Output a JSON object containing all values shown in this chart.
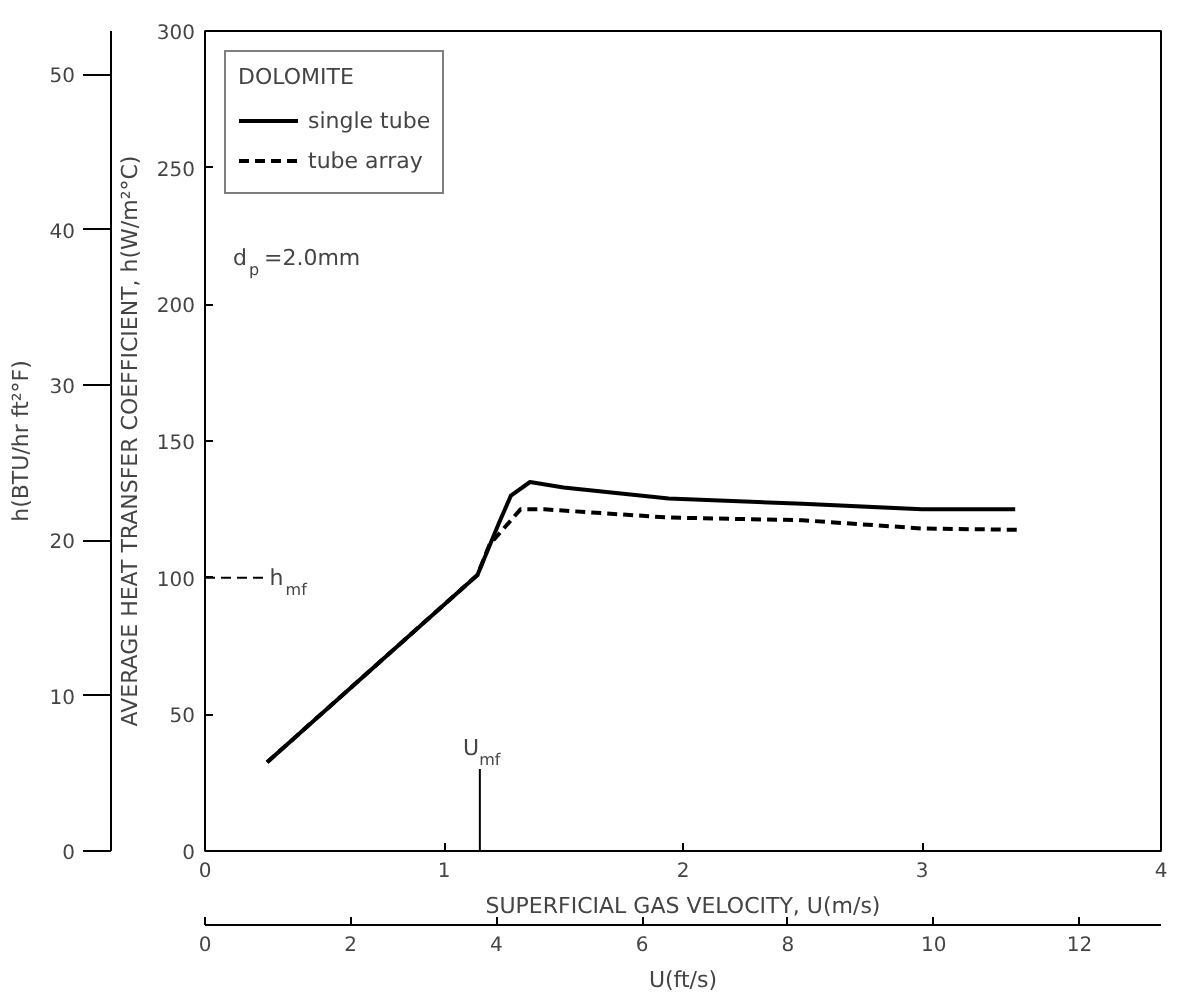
{
  "chart_data": {
    "type": "line",
    "xlabel": "SUPERFICIAL GAS VELOCITY, U(m/s)",
    "ylabel": "AVERAGE HEAT TRANSFER COEFFICIENT, h(W/m²°C)",
    "y2label": "h(BTU/hr ft²°F)",
    "x2label": "U(ft/s)",
    "legend_title": "DOLOMITE",
    "annotations": [
      "d$_{p}$ =2.0mm"
    ],
    "ref_lines": [
      {
        "axis": "y",
        "value": 100,
        "label": "h$_{mf}$",
        "line_style": "dashed"
      },
      {
        "axis": "x",
        "value": 1.15,
        "label": "U$_{mf}$",
        "line_style": "solid"
      }
    ],
    "xlim": [
      0,
      4
    ],
    "xticks": [
      0,
      1,
      2,
      3,
      4
    ],
    "ylim": [
      0,
      300
    ],
    "yticks": [
      0,
      50,
      100,
      150,
      200,
      250,
      300
    ],
    "y2lim": [
      0,
      52.8
    ],
    "y2ticks": [
      0,
      10,
      20,
      30,
      40,
      50
    ],
    "x2lim": [
      0,
      13.12
    ],
    "x2ticks": [
      0,
      2,
      4,
      6,
      8,
      10,
      12
    ],
    "legend": "top left",
    "grid": false,
    "series": [
      {
        "name": "single tube",
        "color": "#000000",
        "line_style": "solid",
        "x": [
          0.26,
          1.14,
          1.23,
          1.28,
          1.36,
          1.5,
          1.94,
          2.5,
          3.0,
          3.39
        ],
        "values": [
          32.5,
          101,
          120,
          130,
          135,
          133,
          129,
          127,
          125,
          125
        ]
      },
      {
        "name": "tube array",
        "color": "#000000",
        "line_style": "dashed",
        "x": [
          0.26,
          1.14,
          1.19,
          1.32,
          1.42,
          1.94,
          2.5,
          3.0,
          3.4
        ],
        "values": [
          32.5,
          101,
          112,
          125,
          125,
          122,
          121,
          118,
          117.5
        ]
      }
    ]
  }
}
